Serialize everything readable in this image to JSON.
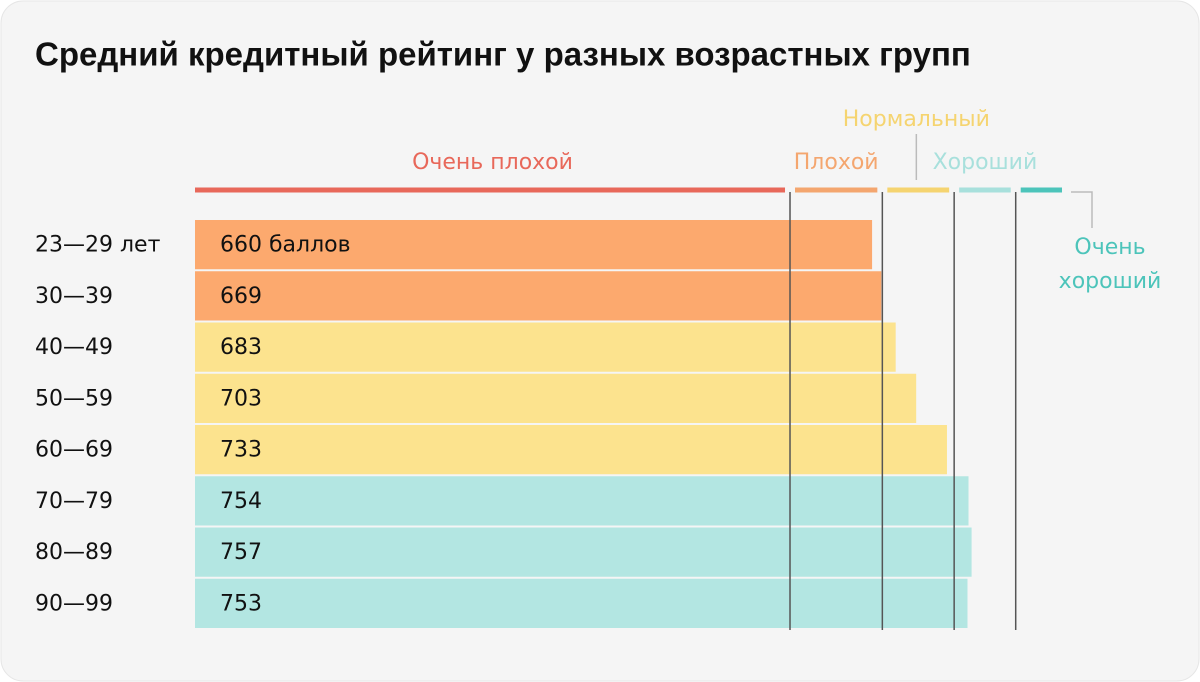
{
  "chart_data": {
    "type": "bar",
    "orientation": "horizontal",
    "title": "Средний кредитный рейтинг у разных возрастных групп",
    "categories": [
      "23—29 лет",
      "30—39",
      "40—49",
      "50—59",
      "60—69",
      "70—79",
      "80—89",
      "90—99"
    ],
    "values": [
      660,
      669,
      683,
      703,
      733,
      754,
      757,
      753
    ],
    "value_labels": [
      "660 баллов",
      "669",
      "683",
      "703",
      "733",
      "754",
      "757",
      "753"
    ],
    "colors": [
      "#fca96e",
      "#fca96e",
      "#fce38e",
      "#fce38e",
      "#fce38e",
      "#b3e6e2",
      "#b3e6e2",
      "#b3e6e2"
    ],
    "xlim": [
      0,
      850
    ],
    "zones": [
      {
        "label": "Очень плохой",
        "from": 0,
        "to": 580,
        "color": "#e8685a"
      },
      {
        "label": "Плохой",
        "from": 580,
        "to": 670,
        "color": "#f4a66f"
      },
      {
        "label": "Нормальный",
        "from": 670,
        "to": 740,
        "color": "#f5d470"
      },
      {
        "label": "Хороший",
        "from": 740,
        "to": 800,
        "color": "#a8e0dc"
      },
      {
        "label": "Очень хороший",
        "from": 800,
        "to": 850,
        "color": "#4cc4ba"
      }
    ]
  }
}
